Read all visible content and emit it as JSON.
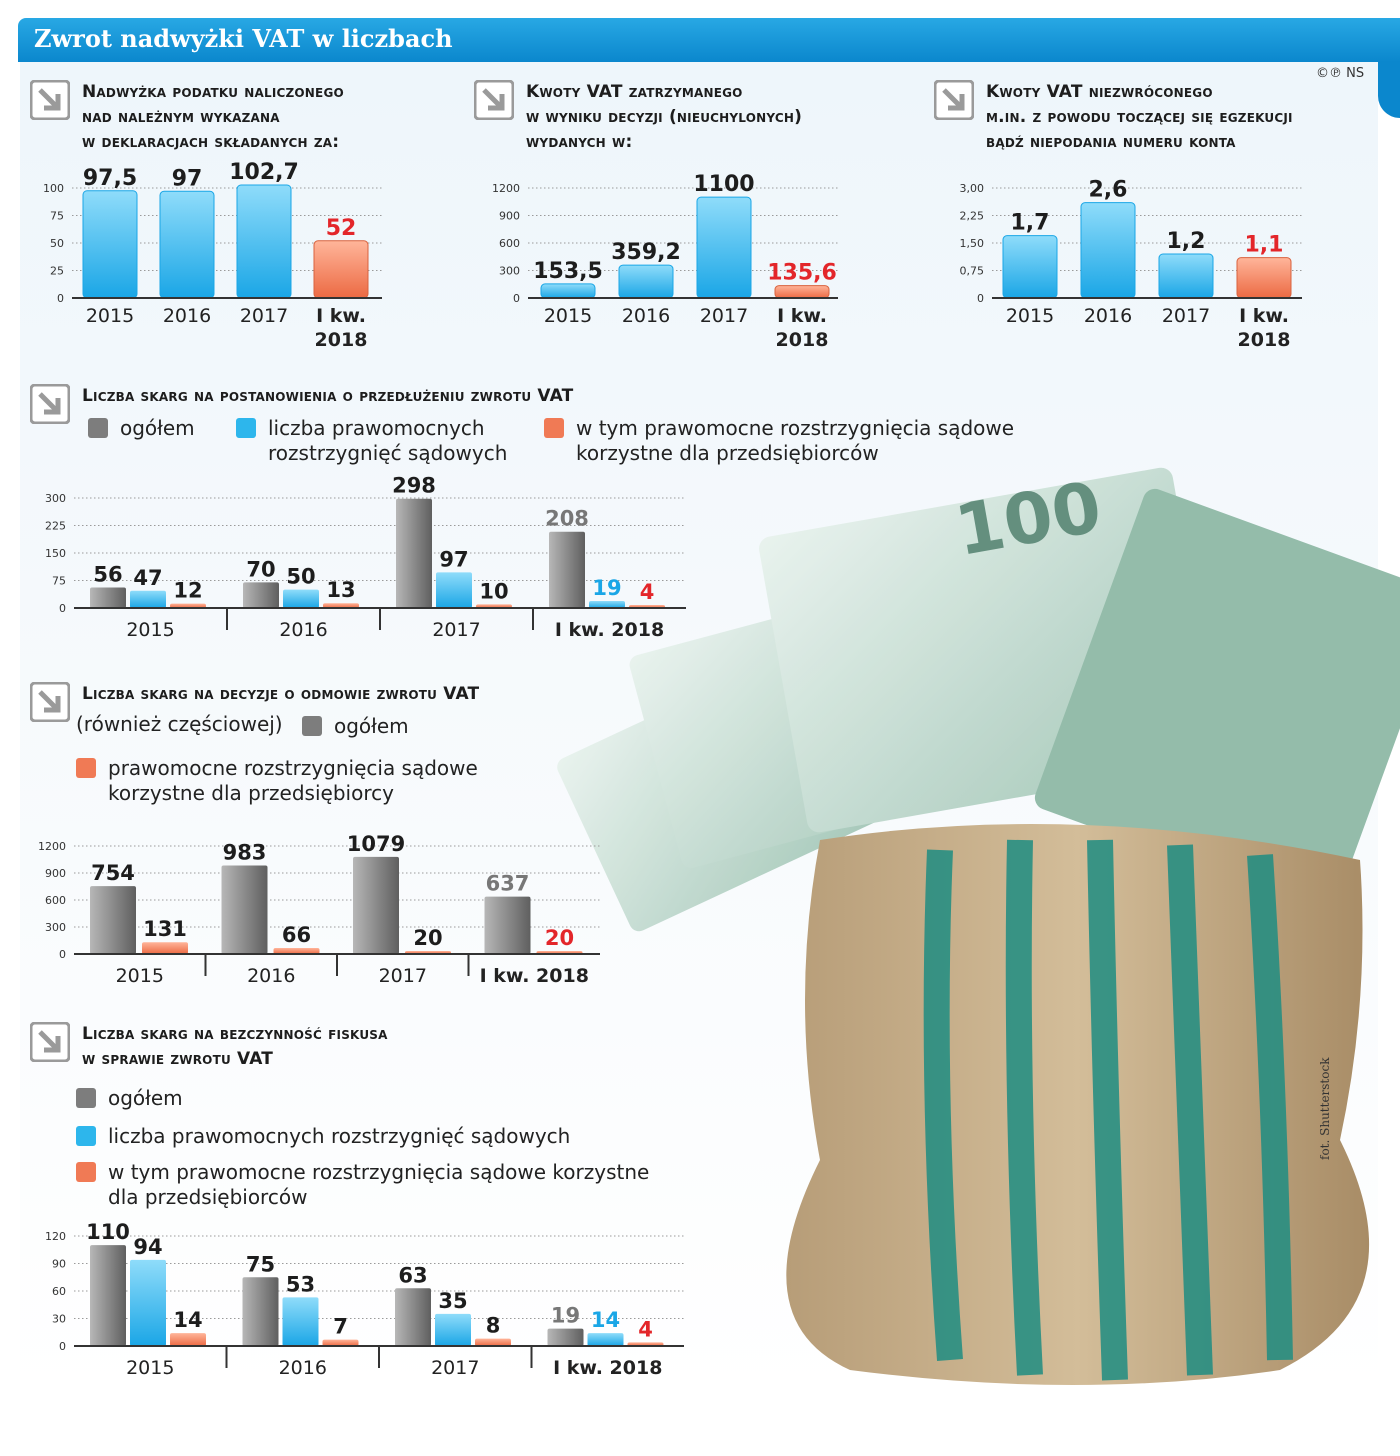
{
  "title": "Zwrot nadwyżki VAT w liczbach",
  "copyright": "©℗ NS",
  "photo_credit": "fot. Shutterstock",
  "colors": {
    "blue": "#2db6ec",
    "orange": "#f07a55",
    "gray": "#7d7d7d",
    "red": "#e3262a",
    "accent": "#0b87cd"
  },
  "legends": {
    "chart4": [
      {
        "label": "ogółem",
        "color": "#7d7d7d"
      },
      {
        "label": "liczba prawomocnych\nrozstrzygnięć sądowych",
        "color": "#2db6ec"
      },
      {
        "label": "w tym prawomocne rozstrzygnięcia sądowe\nkorzystne dla przedsiębiorców",
        "color": "#f07a55"
      }
    ],
    "chart5": [
      {
        "label": "ogółem",
        "color": "#7d7d7d"
      },
      {
        "label": "prawomocne rozstrzygnięcia sądowe\nkorzystne dla przedsiębiorcy",
        "color": "#f07a55"
      }
    ],
    "chart6": [
      {
        "label": "ogółem",
        "color": "#7d7d7d"
      },
      {
        "label": "liczba prawomocnych rozstrzygnięć sądowych",
        "color": "#2db6ec"
      },
      {
        "label": "w tym prawomocne rozstrzygnięcia sądowe korzystne\ndla przedsiębiorców",
        "color": "#f07a55"
      }
    ]
  },
  "chart5_note": "(również częściowej)",
  "chart_data": [
    {
      "id": "chart1",
      "type": "bar",
      "title": "Nadwyżka podatku naliczonego\nnad należnym wykazana\nw deklaracjach składanych za:",
      "categories": [
        "2015",
        "2016",
        "2017",
        "I kw.\n2018"
      ],
      "values": [
        97.5,
        97,
        102.7,
        52
      ],
      "labels": [
        "97,5",
        "97",
        "102,7",
        "52"
      ],
      "highlight_last": true,
      "yticks": [
        "0",
        "25",
        "50",
        "75",
        "100"
      ],
      "ylim": [
        0,
        100
      ]
    },
    {
      "id": "chart2",
      "type": "bar",
      "title": "Kwoty VAT zatrzymanego\nw wyniku decyzji (nieuchylonych)\nwydanych w:",
      "categories": [
        "2015",
        "2016",
        "2017",
        "I kw.\n2018"
      ],
      "values": [
        153.5,
        359.2,
        1100,
        135.6
      ],
      "labels": [
        "153,5",
        "359,2",
        "1100",
        "135,6"
      ],
      "highlight_last": true,
      "yticks": [
        "0",
        "300",
        "600",
        "900",
        "1200"
      ],
      "ylim": [
        0,
        1200
      ]
    },
    {
      "id": "chart3",
      "type": "bar",
      "title": "Kwoty VAT niezwróconego\nm.in. z powodu toczącej się egzekucji\nbądź niepodania numeru konta",
      "categories": [
        "2015",
        "2016",
        "2017",
        "I kw.\n2018"
      ],
      "values": [
        1.7,
        2.6,
        1.2,
        1.1
      ],
      "labels": [
        "1,7",
        "2,6",
        "1,2",
        "1,1"
      ],
      "highlight_last": true,
      "yticks": [
        "0",
        "0,75",
        "1,50",
        "2,25",
        "3,00"
      ],
      "ylim": [
        0,
        3
      ]
    },
    {
      "id": "chart4",
      "type": "bar",
      "title": "Liczba skarg na postanowienia o przedłużeniu zwrotu VAT",
      "categories": [
        "2015",
        "2016",
        "2017",
        "I kw. 2018"
      ],
      "series": [
        {
          "name": "ogółem",
          "color": "#7d7d7d",
          "values": [
            56,
            70,
            298,
            208
          ],
          "labels": [
            "56",
            "70",
            "298",
            "208"
          ]
        },
        {
          "name": "liczba prawomocnych rozstrzygnięć sądowych",
          "color": "#2db6ec",
          "values": [
            47,
            50,
            97,
            19
          ],
          "labels": [
            "47",
            "50",
            "97",
            "19"
          ]
        },
        {
          "name": "w tym prawomocne rozstrzygnięcia sądowe korzystne dla przedsiębiorców",
          "color": "#f07a55",
          "values": [
            12,
            13,
            10,
            4
          ],
          "labels": [
            "12",
            "13",
            "10",
            "4"
          ]
        }
      ],
      "yticks": [
        "0",
        "75",
        "150",
        "225",
        "300"
      ],
      "ylim": [
        0,
        300
      ]
    },
    {
      "id": "chart5",
      "type": "bar",
      "title": "Liczba skarg na decyzje o odmowie zwrotu VAT",
      "categories": [
        "2015",
        "2016",
        "2017",
        "I kw. 2018"
      ],
      "series": [
        {
          "name": "ogółem",
          "color": "#7d7d7d",
          "values": [
            754,
            983,
            1079,
            637
          ],
          "labels": [
            "754",
            "983",
            "1079",
            "637"
          ]
        },
        {
          "name": "prawomocne rozstrzygnięcia sądowe korzystne dla przedsiębiorcy",
          "color": "#f07a55",
          "values": [
            131,
            66,
            20,
            20
          ],
          "labels": [
            "131",
            "66",
            "20",
            "20"
          ]
        }
      ],
      "yticks": [
        "0",
        "300",
        "600",
        "900",
        "1200"
      ],
      "ylim": [
        0,
        1200
      ]
    },
    {
      "id": "chart6",
      "type": "bar",
      "title": "Liczba skarg na bezczynność fiskusa\nw sprawie zwrotu VAT",
      "categories": [
        "2015",
        "2016",
        "2017",
        "I kw. 2018"
      ],
      "series": [
        {
          "name": "ogółem",
          "color": "#7d7d7d",
          "values": [
            110,
            75,
            63,
            19
          ],
          "labels": [
            "110",
            "75",
            "63",
            "19"
          ]
        },
        {
          "name": "liczba prawomocnych rozstrzygnięć sądowych",
          "color": "#2db6ec",
          "values": [
            94,
            53,
            35,
            14
          ],
          "labels": [
            "94",
            "53",
            "35",
            "14"
          ]
        },
        {
          "name": "w tym prawomocne rozstrzygnięcia sądowe korzystne dla przedsiębiorców",
          "color": "#f07a55",
          "values": [
            14,
            7,
            8,
            4
          ],
          "labels": [
            "14",
            "7",
            "8",
            "4"
          ]
        }
      ],
      "yticks": [
        "0",
        "30",
        "60",
        "90",
        "120"
      ],
      "ylim": [
        0,
        120
      ]
    }
  ]
}
